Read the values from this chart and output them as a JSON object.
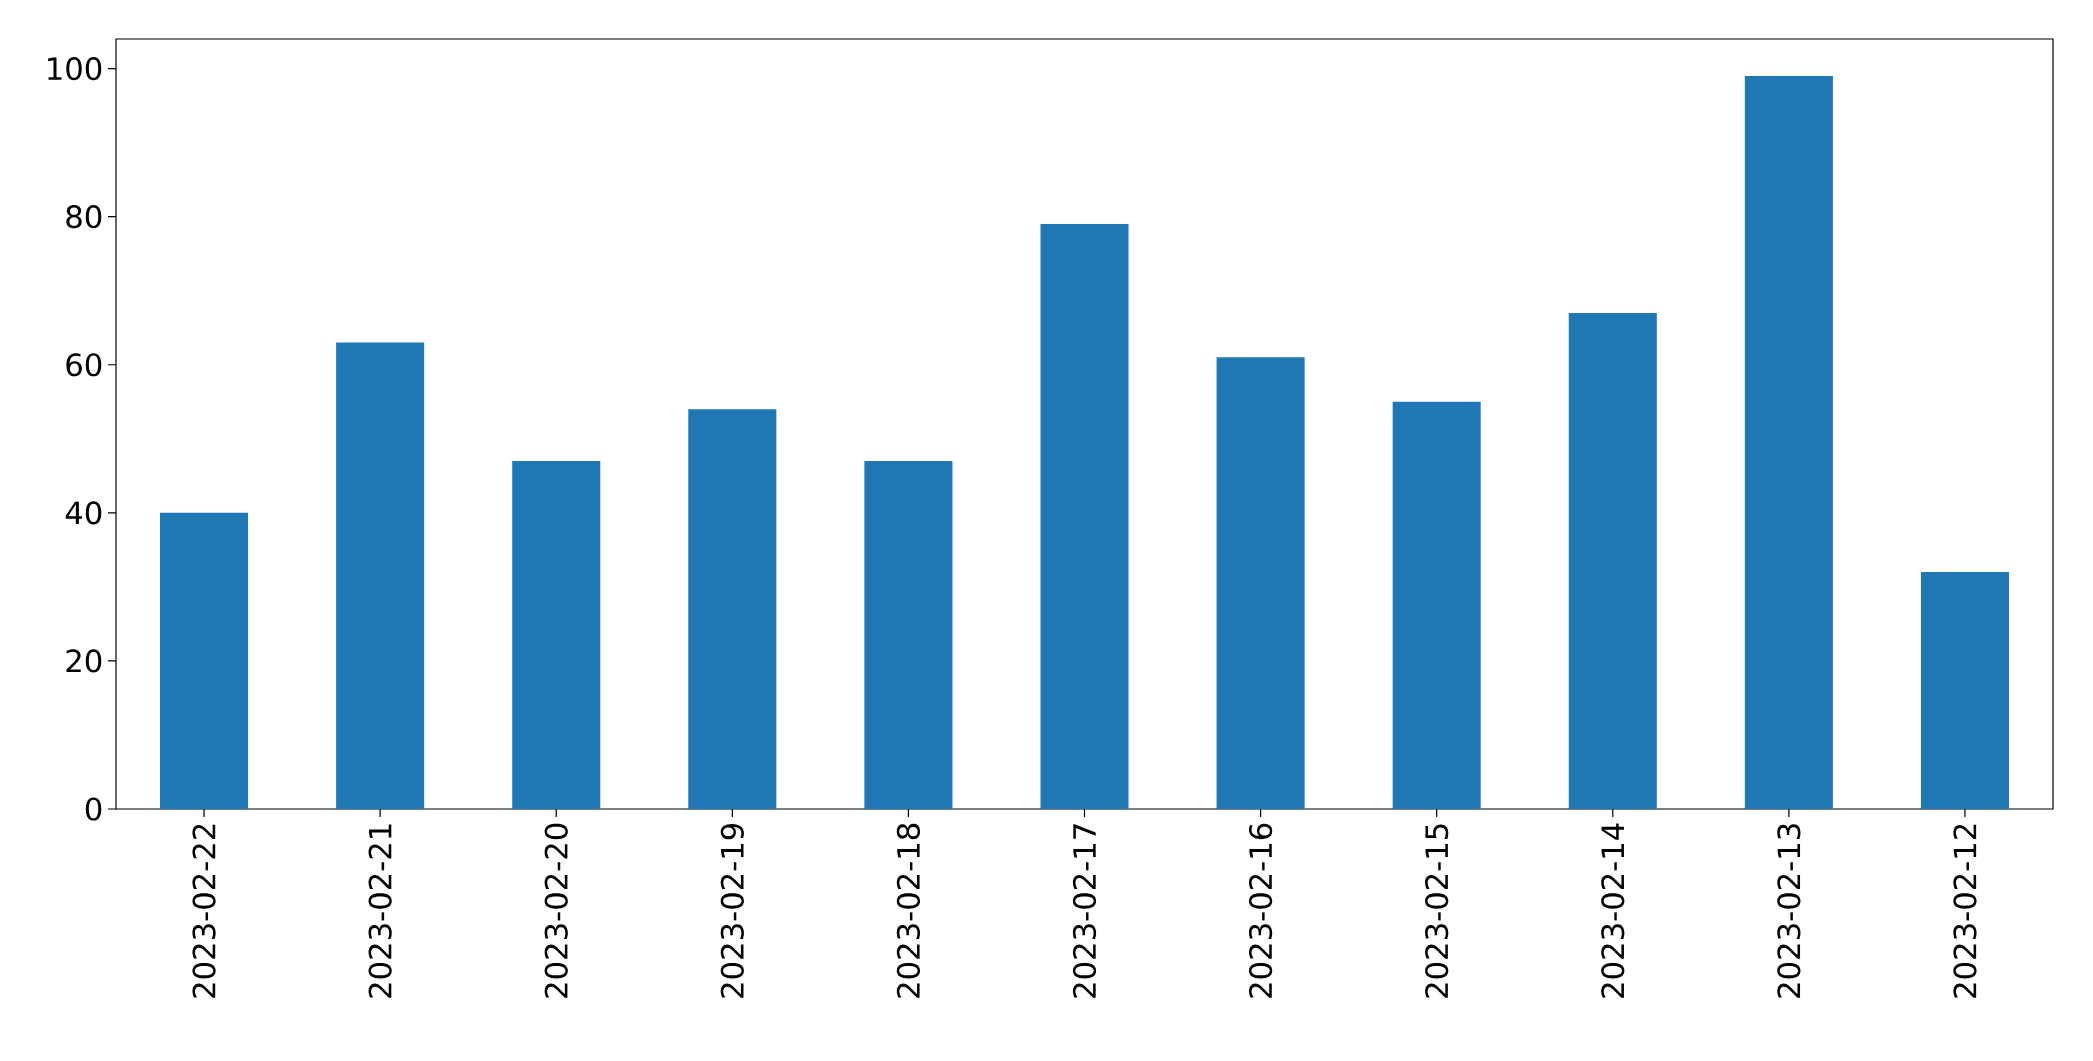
{
  "chart_data": {
    "type": "bar",
    "categories": [
      "2023-02-22",
      "2023-02-21",
      "2023-02-20",
      "2023-02-19",
      "2023-02-18",
      "2023-02-17",
      "2023-02-16",
      "2023-02-15",
      "2023-02-14",
      "2023-02-13",
      "2023-02-12"
    ],
    "values": [
      40,
      63,
      47,
      54,
      47,
      79,
      61,
      55,
      67,
      99,
      32
    ],
    "color": "#1f77b4",
    "ylim": [
      0,
      104
    ],
    "yticks": [
      0,
      20,
      40,
      60,
      80,
      100
    ]
  }
}
